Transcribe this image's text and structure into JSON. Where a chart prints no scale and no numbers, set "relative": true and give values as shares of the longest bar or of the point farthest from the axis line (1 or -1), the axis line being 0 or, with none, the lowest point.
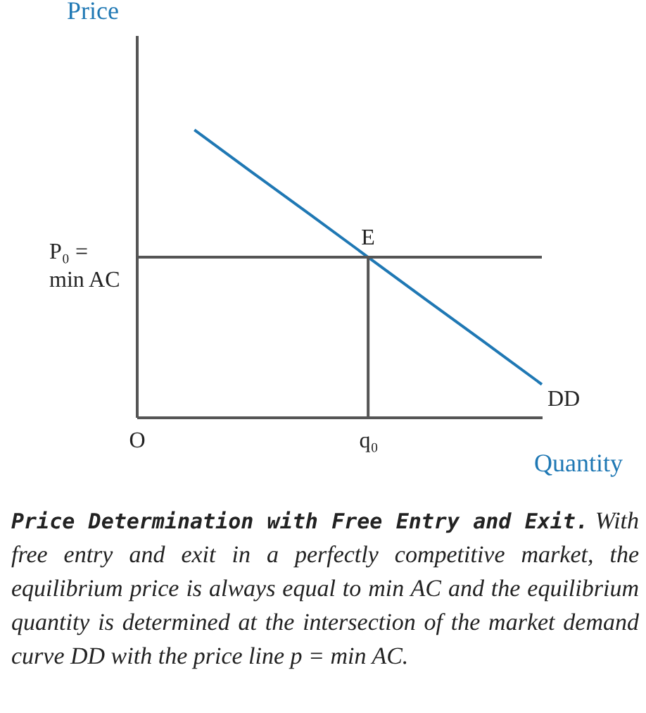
{
  "chart_data": {
    "type": "line",
    "relative": true,
    "title": "Price Determination with Free Entry and Exit.",
    "subtitle": "With free entry and exit in a perfectly competitive market, the equilibrium price is always equal to min AC and the equilibrium quantity is determined at the intersection of the market demand curve DD with the price line p = min AC.",
    "xlabel": "Quantity",
    "ylabel": "Price",
    "categories": [
      "O",
      null,
      null,
      null,
      "q₀",
      null,
      null,
      null
    ],
    "series": [
      {
        "name": "DD",
        "color": "#1f78b4",
        "values": [
          null,
          1,
          0.852,
          0.705,
          0.557,
          0.409,
          0.262,
          0.114
        ]
      },
      {
        "color": "#555555",
        "x": [
          "q₀",
          "q₀"
        ],
        "values": [
          0,
          0.557
        ]
      }
    ],
    "ref_lines": [
      {
        "axis": "y",
        "value": 0.557,
        "label": "P₀ =\nmin AC",
        "color": "#555555"
      }
    ],
    "annotations": [
      {
        "text": "E",
        "x": "q₀",
        "y": 0.557
      }
    ]
  }
}
